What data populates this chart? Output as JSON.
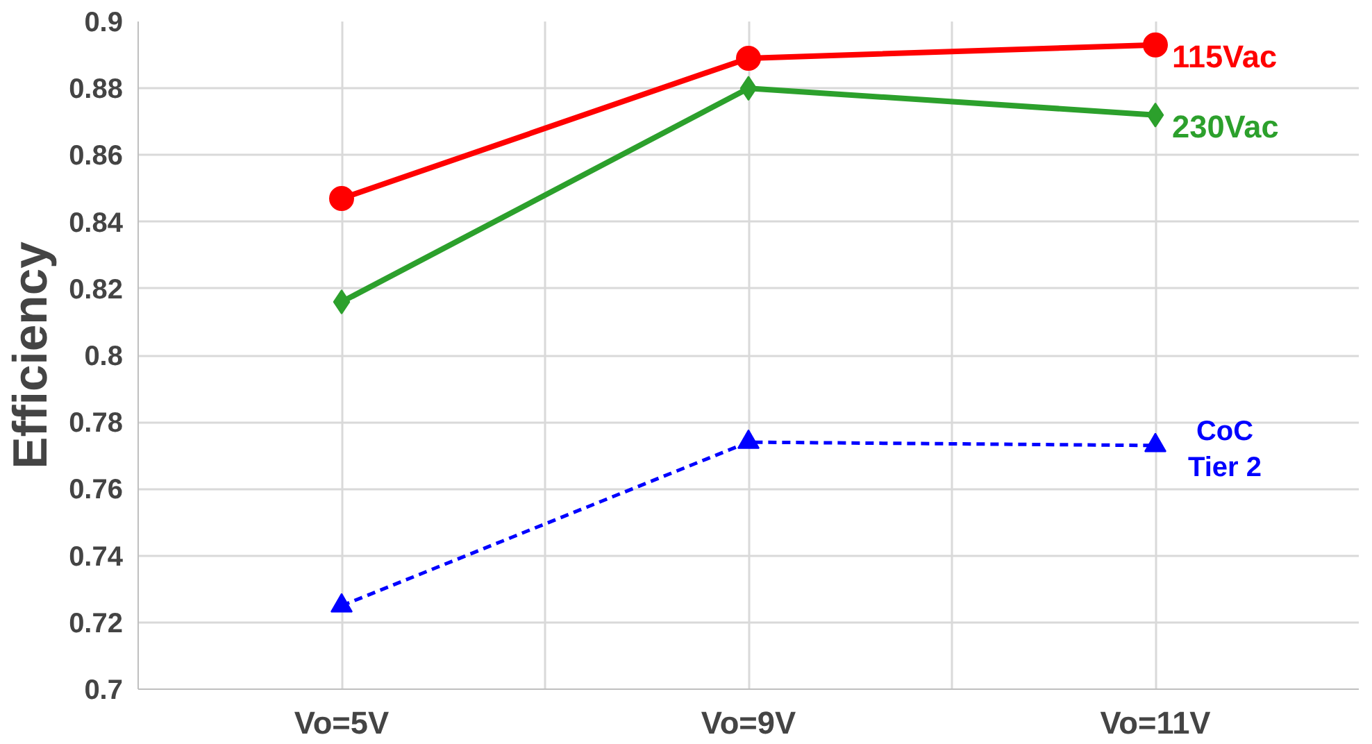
{
  "chart_data": {
    "type": "line",
    "ylabel": "Efficiency",
    "categories": [
      "Vo=5V",
      "Vo=9V",
      "Vo=11V"
    ],
    "series": [
      {
        "name": "115Vac",
        "color": "#ff0000",
        "values": [
          0.847,
          0.889,
          0.893
        ],
        "marker": "circle",
        "line_style": "solid"
      },
      {
        "name": "230Vac",
        "color": "#2ca02c",
        "values": [
          0.816,
          0.88,
          0.872
        ],
        "marker": "diamond",
        "line_style": "solid"
      },
      {
        "name": "CoC\nTier 2",
        "color": "#0000ff",
        "values": [
          0.725,
          0.774,
          0.773
        ],
        "marker": "triangle",
        "line_style": "dashed"
      }
    ],
    "ylim": [
      0.7,
      0.9
    ],
    "yticks": [
      0.7,
      0.72,
      0.74,
      0.76,
      0.78,
      0.8,
      0.82,
      0.84,
      0.86,
      0.88,
      0.9
    ],
    "grid": true
  }
}
